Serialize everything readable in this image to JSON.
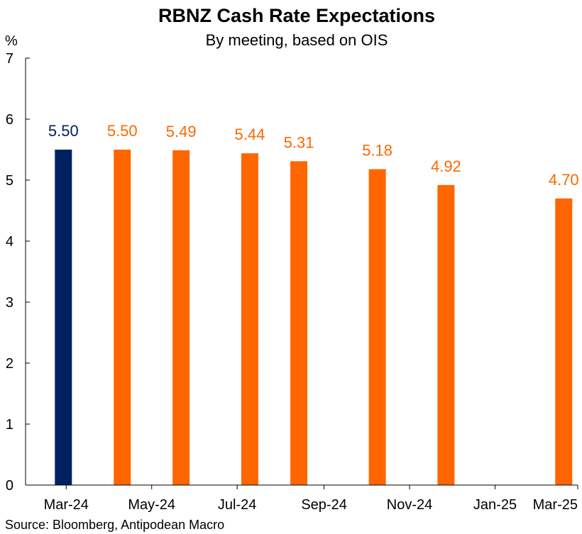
{
  "chart_data": {
    "type": "bar",
    "title": "RBNZ Cash Rate Expectations",
    "subtitle": "By meeting, based on OIS",
    "ylabel": "%",
    "xlabel": "",
    "ylim": [
      0,
      7
    ],
    "yticks": [
      "0",
      "1",
      "2",
      "3",
      "4",
      "5",
      "6",
      "7"
    ],
    "x_axis": {
      "start": "2024-02-01",
      "end": "2025-03-01",
      "tick_dates": [
        "2024-03-01",
        "2024-05-01",
        "2024-07-01",
        "2024-09-01",
        "2024-11-01",
        "2025-01-01",
        "2025-03-01"
      ],
      "tick_labels": [
        "Mar-24",
        "May-24",
        "Jul-24",
        "Sep-24",
        "Nov-24",
        "Jan-25",
        "Mar-25"
      ]
    },
    "bars": [
      {
        "date": "2024-02-28",
        "value": 5.5,
        "label": "5.50",
        "color": "#002060"
      },
      {
        "date": "2024-04-10",
        "value": 5.5,
        "label": "5.50",
        "color": "#FF6600"
      },
      {
        "date": "2024-05-22",
        "value": 5.49,
        "label": "5.49",
        "color": "#FF6600"
      },
      {
        "date": "2024-07-10",
        "value": 5.44,
        "label": "5.44",
        "color": "#FF6600"
      },
      {
        "date": "2024-08-14",
        "value": 5.31,
        "label": "5.31",
        "color": "#FF6600"
      },
      {
        "date": "2024-10-09",
        "value": 5.18,
        "label": "5.18",
        "color": "#FF6600"
      },
      {
        "date": "2024-11-27",
        "value": 4.92,
        "label": "4.92",
        "color": "#FF6600"
      },
      {
        "date": "2025-02-19",
        "value": 4.7,
        "label": "4.70",
        "color": "#FF6600"
      }
    ],
    "grid": false,
    "legend": "none"
  },
  "source": "Source: Bloomberg, Antipodean Macro"
}
